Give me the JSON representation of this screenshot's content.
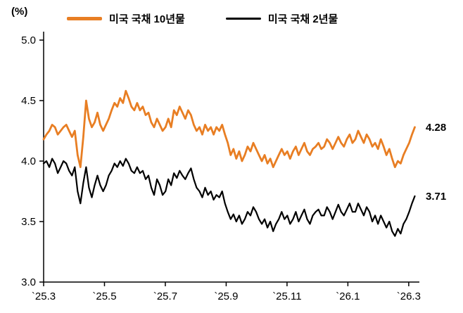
{
  "unit_label": "(%)",
  "legend": [
    {
      "label": "미국 국채 10년물",
      "color": "#E87E23"
    },
    {
      "label": "미국 국채 2년물",
      "color": "#000000"
    }
  ],
  "chart_data": {
    "type": "line",
    "title": "",
    "ylabel": "(%)",
    "ylim": [
      3.0,
      5.0
    ],
    "yticks": [
      3.0,
      3.5,
      4.0,
      4.5,
      5.0
    ],
    "ytick_labels": [
      "3.0",
      "3.5",
      "4.0",
      "4.5",
      "5.0"
    ],
    "xtick_labels": [
      "`25.3",
      "`25.5",
      "`25.7",
      "`25.9",
      "`25.11",
      "`26.1",
      "`26.3"
    ],
    "xtick_months": [
      0,
      2,
      4,
      6,
      8,
      10,
      12
    ],
    "x_domain": [
      0,
      12.35
    ],
    "data_span_months": 12.2,
    "grid": false,
    "legend_position": "top",
    "series": [
      {
        "name": "미국 국채 10년물",
        "color": "#E87E23",
        "end_label": "4.28",
        "values": [
          4.18,
          4.22,
          4.25,
          4.3,
          4.28,
          4.22,
          4.25,
          4.28,
          4.3,
          4.25,
          4.2,
          4.25,
          4.05,
          3.95,
          4.2,
          4.5,
          4.35,
          4.28,
          4.32,
          4.4,
          4.3,
          4.25,
          4.3,
          4.35,
          4.42,
          4.48,
          4.45,
          4.52,
          4.48,
          4.58,
          4.52,
          4.45,
          4.42,
          4.48,
          4.42,
          4.45,
          4.38,
          4.4,
          4.32,
          4.28,
          4.35,
          4.3,
          4.25,
          4.28,
          4.35,
          4.28,
          4.42,
          4.38,
          4.45,
          4.4,
          4.35,
          4.42,
          4.38,
          4.3,
          4.25,
          4.28,
          4.22,
          4.3,
          4.25,
          4.28,
          4.22,
          4.28,
          4.25,
          4.3,
          4.22,
          4.15,
          4.05,
          4.1,
          4.02,
          4.08,
          4.0,
          4.05,
          4.12,
          4.08,
          4.15,
          4.1,
          4.05,
          4.0,
          4.05,
          3.98,
          4.02,
          3.95,
          4.0,
          4.05,
          4.1,
          4.05,
          4.08,
          4.02,
          4.08,
          4.12,
          4.05,
          4.1,
          4.15,
          4.08,
          4.05,
          4.1,
          4.12,
          4.15,
          4.1,
          4.12,
          4.18,
          4.15,
          4.1,
          4.15,
          4.2,
          4.15,
          4.12,
          4.18,
          4.22,
          4.15,
          4.18,
          4.25,
          4.2,
          4.15,
          4.22,
          4.18,
          4.12,
          4.15,
          4.1,
          4.18,
          4.12,
          4.05,
          4.1,
          4.02,
          3.95,
          4.0,
          3.98,
          4.05,
          4.1,
          4.15,
          4.22,
          4.28
        ]
      },
      {
        "name": "미국 국채 2년물",
        "color": "#000000",
        "end_label": "3.71",
        "values": [
          3.98,
          4.0,
          3.95,
          4.02,
          3.98,
          3.9,
          3.95,
          4.0,
          3.98,
          3.92,
          3.88,
          3.95,
          3.75,
          3.65,
          3.82,
          3.95,
          3.78,
          3.7,
          3.8,
          3.88,
          3.8,
          3.75,
          3.8,
          3.88,
          3.92,
          3.98,
          3.95,
          4.0,
          3.96,
          4.02,
          3.98,
          3.92,
          3.9,
          3.95,
          3.9,
          3.92,
          3.85,
          3.88,
          3.78,
          3.72,
          3.85,
          3.8,
          3.72,
          3.75,
          3.85,
          3.8,
          3.9,
          3.86,
          3.92,
          3.88,
          3.85,
          3.9,
          3.94,
          3.85,
          3.78,
          3.75,
          3.7,
          3.78,
          3.72,
          3.75,
          3.68,
          3.72,
          3.7,
          3.75,
          3.65,
          3.58,
          3.52,
          3.56,
          3.5,
          3.55,
          3.48,
          3.52,
          3.58,
          3.55,
          3.62,
          3.58,
          3.52,
          3.48,
          3.52,
          3.45,
          3.5,
          3.42,
          3.48,
          3.52,
          3.58,
          3.52,
          3.55,
          3.48,
          3.52,
          3.58,
          3.5,
          3.55,
          3.6,
          3.52,
          3.48,
          3.55,
          3.58,
          3.6,
          3.55,
          3.55,
          3.62,
          3.58,
          3.52,
          3.58,
          3.64,
          3.58,
          3.55,
          3.6,
          3.65,
          3.58,
          3.58,
          3.65,
          3.6,
          3.55,
          3.62,
          3.58,
          3.5,
          3.55,
          3.48,
          3.55,
          3.5,
          3.45,
          3.5,
          3.42,
          3.38,
          3.44,
          3.4,
          3.48,
          3.52,
          3.58,
          3.65,
          3.71
        ]
      }
    ]
  }
}
